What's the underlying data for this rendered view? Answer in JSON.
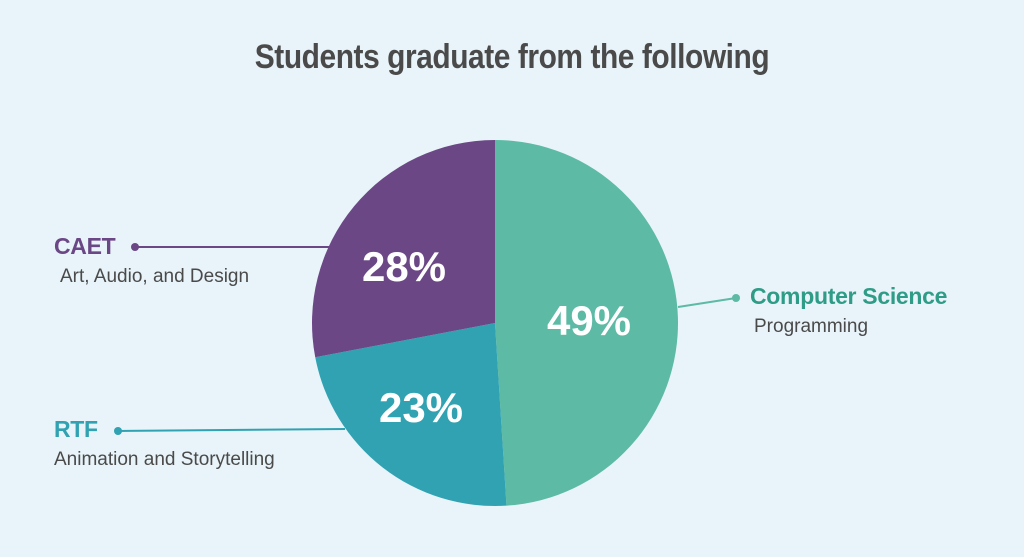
{
  "title": "Students graduate from the following",
  "colors": {
    "background": "#e8f4f9",
    "computer_science": "#5dba a5",
    "rtf": "#30a2b2",
    "caet": "#6b4786",
    "title_text": "#4a4a4a"
  },
  "slices": [
    {
      "name": "Computer Science",
      "subtitle": "Programming",
      "percent_label": "49%",
      "value": 49,
      "color": "#5dbaa5"
    },
    {
      "name": "RTF",
      "subtitle": "Animation and Storytelling",
      "percent_label": "23%",
      "value": 23,
      "color": "#30a2b2"
    },
    {
      "name": "CAET",
      "subtitle": "Art, Audio, and Design",
      "percent_label": "28%",
      "value": 28,
      "color": "#6b4786"
    }
  ],
  "chart_data": {
    "type": "pie",
    "title": "Students graduate from the following",
    "categories": [
      "Computer Science",
      "RTF",
      "CAET"
    ],
    "subtitles": [
      "Programming",
      "Animation and Storytelling",
      "Art, Audio, and Design"
    ],
    "values": [
      49,
      23,
      28
    ],
    "unit": "%",
    "colors": [
      "#5dbaa5",
      "#30a2b2",
      "#6b4786"
    ],
    "start_angle": "top, clockwise",
    "legend": "callout labels"
  }
}
